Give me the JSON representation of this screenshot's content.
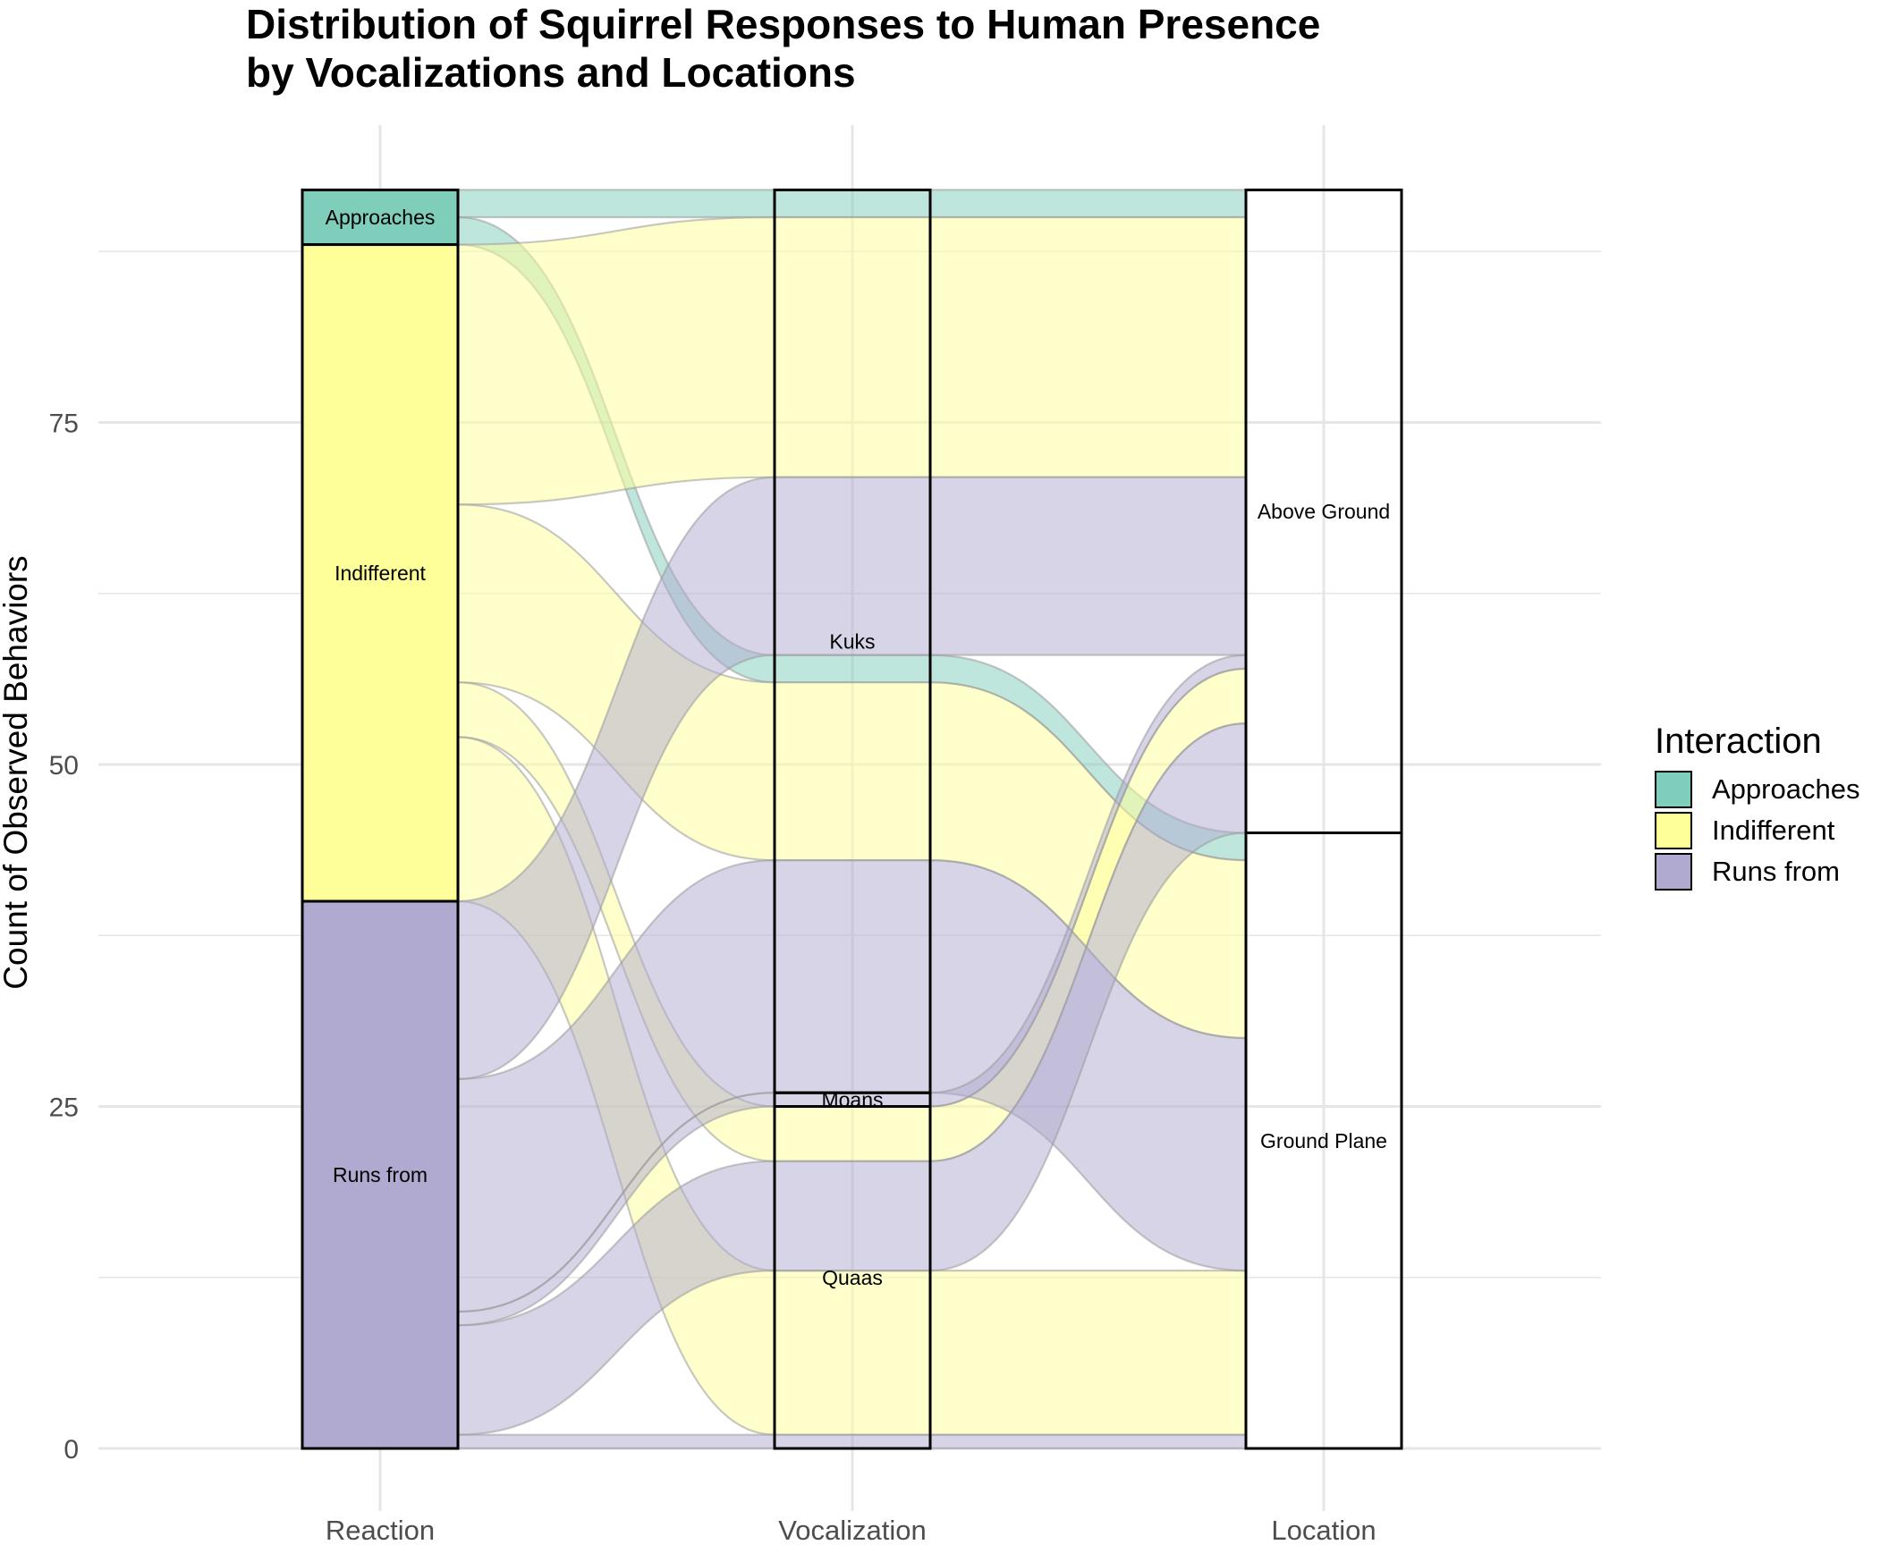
{
  "chart_data": {
    "type": "alluvial",
    "title": [
      "Distribution of Squirrel Responses to Human Presence",
      "by Vocalizations and Locations"
    ],
    "xlabel": "",
    "ylabel": "Count of Observed Behaviors",
    "axes": [
      "Reaction",
      "Vocalization",
      "Location"
    ],
    "yticks": [
      0,
      25,
      50,
      75
    ],
    "ylim": [
      0,
      92
    ],
    "grid": true,
    "legend": {
      "title": "Interaction",
      "position": "right",
      "items": [
        "Approaches",
        "Indifferent",
        "Runs from"
      ]
    },
    "colors": {
      "Approaches": "#7FCDBB",
      "Indifferent": "#FFFF99",
      "Runs from": "#B0A9D0"
    },
    "strata": [
      {
        "axis": "Reaction",
        "label": "Approaches",
        "lo": 88,
        "hi": 92,
        "color": "Approaches"
      },
      {
        "axis": "Reaction",
        "label": "Indifferent",
        "lo": 40,
        "hi": 88,
        "color": "Indifferent"
      },
      {
        "axis": "Reaction",
        "label": "Runs from",
        "lo": 0,
        "hi": 40,
        "color": "Runs from"
      },
      {
        "axis": "Vocalization",
        "label": "Kuks",
        "lo": 26,
        "hi": 92
      },
      {
        "axis": "Vocalization",
        "label": "Moans",
        "lo": 25,
        "hi": 26
      },
      {
        "axis": "Vocalization",
        "label": "Quaas",
        "lo": 0,
        "hi": 25
      },
      {
        "axis": "Location",
        "label": "Above Ground",
        "lo": 45,
        "hi": 92
      },
      {
        "axis": "Location",
        "label": "Ground Plane",
        "lo": 0,
        "hi": 45
      }
    ],
    "flows": [
      {
        "interaction": "Approaches",
        "vocalization": "Kuks",
        "location": "Above Ground",
        "count": 2,
        "r": [
          90,
          92
        ],
        "v": [
          90,
          92
        ],
        "l": [
          90,
          92
        ]
      },
      {
        "interaction": "Approaches",
        "vocalization": "Kuks",
        "location": "Ground Plane",
        "count": 2,
        "r": [
          88,
          90
        ],
        "v": [
          56,
          58
        ],
        "l": [
          43,
          45
        ]
      },
      {
        "interaction": "Indifferent",
        "vocalization": "Kuks",
        "location": "Above Ground",
        "count": 19,
        "r": [
          69,
          88
        ],
        "v": [
          71,
          90
        ],
        "l": [
          71,
          90
        ]
      },
      {
        "interaction": "Indifferent",
        "vocalization": "Kuks",
        "location": "Ground Plane",
        "count": 13,
        "r": [
          56,
          69
        ],
        "v": [
          43,
          56
        ],
        "l": [
          30,
          43
        ]
      },
      {
        "interaction": "Indifferent",
        "vocalization": "Quaas",
        "location": "Above Ground",
        "count": 4,
        "r": [
          52,
          56
        ],
        "v": [
          21,
          25
        ],
        "l": [
          53,
          57
        ]
      },
      {
        "interaction": "Indifferent",
        "vocalization": "Quaas",
        "location": "Ground Plane",
        "count": 12,
        "r": [
          40,
          52
        ],
        "v": [
          1,
          13
        ],
        "l": [
          1,
          13
        ]
      },
      {
        "interaction": "Runs from",
        "vocalization": "Kuks",
        "location": "Above Ground",
        "count": 13,
        "r": [
          27,
          40
        ],
        "v": [
          58,
          71
        ],
        "l": [
          58,
          71
        ]
      },
      {
        "interaction": "Runs from",
        "vocalization": "Kuks",
        "location": "Ground Plane",
        "count": 17,
        "r": [
          10,
          27
        ],
        "v": [
          26,
          43
        ],
        "l": [
          13,
          30
        ]
      },
      {
        "interaction": "Runs from",
        "vocalization": "Moans",
        "location": "Above Ground",
        "count": 1,
        "r": [
          9,
          10
        ],
        "v": [
          25,
          26
        ],
        "l": [
          57,
          58
        ]
      },
      {
        "interaction": "Runs from",
        "vocalization": "Quaas",
        "location": "Above Ground",
        "count": 8,
        "r": [
          1,
          9
        ],
        "v": [
          13,
          21
        ],
        "l": [
          45,
          53
        ]
      },
      {
        "interaction": "Runs from",
        "vocalization": "Quaas",
        "location": "Ground Plane",
        "count": 1,
        "r": [
          0,
          1
        ],
        "v": [
          0,
          1
        ],
        "l": [
          0,
          1
        ]
      }
    ]
  }
}
